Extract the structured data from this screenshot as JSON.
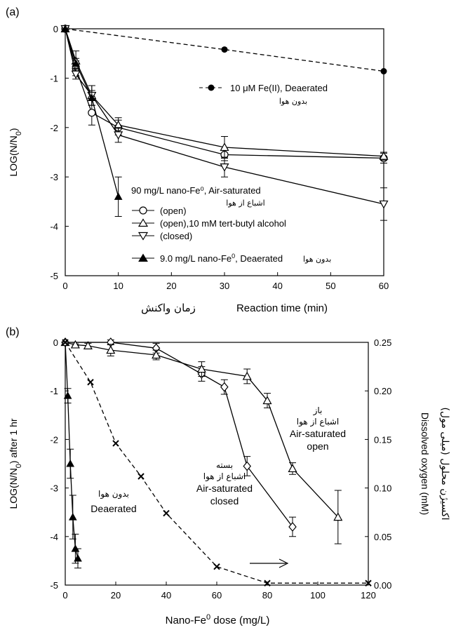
{
  "chart_data": [
    {
      "panel_label": "(a)",
      "type": "line",
      "xlabel": "Reaction time (min)",
      "xlabel_fa": "زمان واکنش",
      "ylabel_html": "LOG(N/N<tspan baseline-shift=\"sub\" font-size=\"11\">0</tspan>)",
      "xlim": [
        0,
        60
      ],
      "ylim": [
        -5,
        0
      ],
      "xticks": [
        0,
        10,
        20,
        30,
        40,
        50,
        60
      ],
      "yticks": [
        0,
        -1,
        -2,
        -3,
        -4,
        -5
      ],
      "series": [
        {
          "id": "fe2",
          "name": "10 μM Fe(II), Deaerated",
          "name_fa": "بدون هوا",
          "marker": "circle-filled",
          "dash": true,
          "x": [
            0,
            30,
            60
          ],
          "y": [
            0,
            -0.42,
            -0.86
          ],
          "err": [
            0,
            0,
            0
          ]
        },
        {
          "id": "open",
          "name": "(open)",
          "marker": "circle-open",
          "dash": false,
          "x": [
            0,
            2,
            5,
            10,
            30,
            60
          ],
          "y": [
            0,
            -0.8,
            -1.7,
            -2.0,
            -2.55,
            -2.62
          ],
          "err": [
            0,
            0.15,
            0.25,
            0.15,
            0.12,
            0.1
          ]
        },
        {
          "id": "tba",
          "name": "(open),10 mM tert-butyl alcohol",
          "marker": "triangle-up-open",
          "dash": false,
          "x": [
            0,
            2,
            5,
            10,
            30,
            60
          ],
          "y": [
            0,
            -0.65,
            -1.35,
            -1.95,
            -2.4,
            -2.58
          ],
          "err": [
            0,
            0.2,
            0.2,
            0.15,
            0.22,
            0.08
          ]
        },
        {
          "id": "closed",
          "name": "(closed)",
          "marker": "triangle-down-open",
          "dash": false,
          "x": [
            0,
            2,
            5,
            10,
            30,
            60
          ],
          "y": [
            0,
            -0.92,
            -1.35,
            -2.15,
            -2.8,
            -3.55
          ],
          "err": [
            0,
            0.1,
            0.2,
            0.15,
            0.2,
            0.33
          ]
        },
        {
          "id": "deaerated9",
          "name": "9.0 mg/L nano-Fe⁰, Deaerated",
          "name_fa": "بدون هوا",
          "marker": "triangle-up-filled",
          "dash": false,
          "x": [
            0,
            2,
            5,
            10
          ],
          "y": [
            0,
            -0.7,
            -1.4,
            -3.4
          ],
          "err": [
            0,
            0.1,
            0.15,
            0.4
          ]
        }
      ],
      "legend": {
        "fe2_label": "10 μM Fe(II), Deaerated",
        "fe2_fa": "بدون هوا",
        "group_title": "90 mg/L nano-Fe⁰, Air-saturated",
        "group_fa": "اشباع از هوا",
        "open": "(open)",
        "tba": "(open),10 mM tert-butyl alcohol",
        "closed": "(closed)",
        "deaerated": "9.0 mg/L nano-Fe⁰, Deaerated",
        "deaerated_fa": "بدون هوا"
      }
    },
    {
      "panel_label": "(b)",
      "type": "line",
      "xlabel_html": "Nano-Fe<tspan baseline-shift=\"super\" font-size=\"11\">0</tspan> dose (mg/L)",
      "ylabel_html": "LOG(N/N<tspan baseline-shift=\"sub\" font-size=\"11\">0</tspan>) after 1 hr",
      "y2label": "Dissolved oxygen (mM)",
      "y2label_fa": "اکسیژن محلول (میلی مول)",
      "xlim": [
        0,
        120
      ],
      "ylim": [
        -5,
        0
      ],
      "y2lim": [
        0,
        0.25
      ],
      "xticks": [
        0,
        20,
        40,
        60,
        80,
        100,
        120
      ],
      "yticks": [
        0,
        -1,
        -2,
        -3,
        -4,
        -5
      ],
      "y2ticks": [
        "0.00",
        "0.05",
        "0.10",
        "0.15",
        "0.20",
        "0.25"
      ],
      "series": [
        {
          "id": "deaerated_b",
          "name": "Deaerated",
          "marker": "triangle-up-filled",
          "dash": false,
          "x": [
            0,
            1,
            2,
            3,
            4,
            5
          ],
          "y": [
            0,
            -1.1,
            -2.5,
            -3.6,
            -4.25,
            -4.45
          ],
          "err": [
            0,
            0.15,
            0.3,
            0.45,
            0.3,
            0.2
          ]
        },
        {
          "id": "closed_b",
          "name": "Air-saturated closed",
          "marker": "diamond-open",
          "dash": false,
          "x": [
            0,
            18,
            36,
            54,
            63,
            72,
            90
          ],
          "y": [
            0,
            0,
            -0.12,
            -0.65,
            -0.92,
            -2.55,
            -3.8
          ],
          "err": [
            0,
            0.05,
            0.1,
            0.15,
            0.15,
            0.2,
            0.2
          ]
        },
        {
          "id": "open_b",
          "name": "Air-saturated open",
          "marker": "triangle-up-open",
          "dash": false,
          "x": [
            0,
            4,
            9,
            18,
            36,
            54,
            72,
            80,
            90,
            108
          ],
          "y": [
            0,
            -0.05,
            -0.07,
            -0.16,
            -0.26,
            -0.55,
            -0.7,
            -1.2,
            -2.6,
            -3.6
          ],
          "err": [
            0,
            0.02,
            0.05,
            0.12,
            0.1,
            0.15,
            0.15,
            0.15,
            0.12,
            0.55
          ]
        },
        {
          "id": "do",
          "name": "Dissolved oxygen",
          "marker": "x",
          "dash": true,
          "axis": "right",
          "x": [
            0,
            10,
            20,
            30,
            40,
            60,
            80,
            120
          ],
          "y": [
            0.25,
            0.209,
            0.146,
            0.112,
            0.074,
            0.019,
            0.002,
            0.002
          ]
        }
      ],
      "annotations": {
        "open_fa1": "باز",
        "open_fa2": "اشباع از هوا",
        "open_en1": "Air-saturated",
        "open_en2": "open",
        "closed_fa1": "بسته",
        "closed_fa2": "اشباع از هوا",
        "closed_en1": "Air-saturated",
        "closed_en2": "closed",
        "deaer_fa": "بدون هوا",
        "deaer_en": "Deaerated"
      }
    }
  ]
}
